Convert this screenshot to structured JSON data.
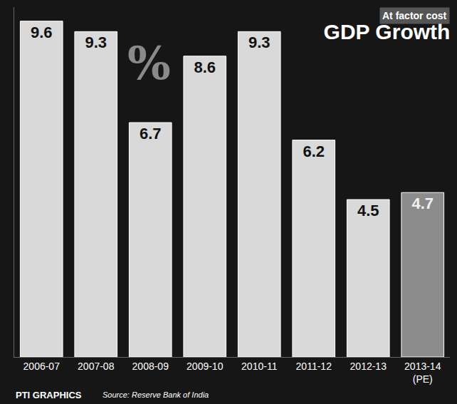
{
  "chart_data": {
    "type": "bar",
    "title": "GDP Growth",
    "subtitle": "At factor cost",
    "annotations": [
      "%",
      "PTI GRAPHICS",
      "Source: Reserve Bank of India"
    ],
    "categories": [
      "2006-07",
      "2007-08",
      "2008-09",
      "2009-10",
      "2010-11",
      "2011-12",
      "2012-13",
      "2013-14 (PE)"
    ],
    "values": [
      9.6,
      9.3,
      6.7,
      8.6,
      9.3,
      6.2,
      4.5,
      4.7
    ],
    "colors": [
      "#d9d9d9",
      "#d9d9d9",
      "#d9d9d9",
      "#d9d9d9",
      "#d9d9d9",
      "#d9d9d9",
      "#d9d9d9",
      "#8c8c8c"
    ],
    "ylim": [
      0,
      10
    ],
    "grid": false,
    "data_labels": true,
    "tick_labels": "x"
  }
}
